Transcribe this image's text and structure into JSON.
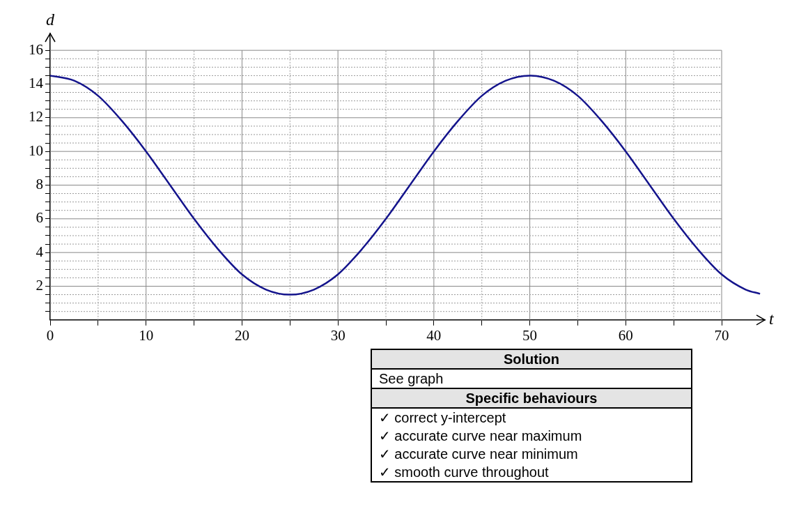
{
  "chart_data": {
    "type": "line",
    "xlabel": "t",
    "ylabel": "d",
    "x": [
      0,
      2.5,
      5,
      7.5,
      10,
      12.5,
      15,
      17.5,
      20,
      22.5,
      25,
      27.5,
      30,
      32.5,
      35,
      37.5,
      40,
      42.5,
      45,
      47.5,
      50,
      52.5,
      55,
      57.5,
      60,
      62.5,
      65,
      67.5,
      70,
      72.5,
      74
    ],
    "series": [
      {
        "color": "#14148c",
        "values": [
          14.5,
          14.2,
          13.3,
          11.8,
          10.0,
          8.0,
          6.0,
          4.2,
          2.7,
          1.8,
          1.5,
          1.8,
          2.7,
          4.2,
          6.0,
          8.0,
          10.0,
          11.8,
          13.3,
          14.2,
          14.5,
          14.2,
          13.3,
          11.8,
          10.0,
          8.0,
          6.0,
          4.2,
          2.7,
          1.8,
          1.55
        ]
      }
    ],
    "xlim": [
      0,
      74.5
    ],
    "ylim": [
      0,
      17
    ],
    "xticks": [
      0,
      {
        "value": 5,
        "label": null
      },
      10,
      {
        "value": 15,
        "label": null
      },
      20,
      {
        "value": 25,
        "label": null
      },
      30,
      {
        "value": 35,
        "label": null
      },
      40,
      {
        "value": 45,
        "label": null
      },
      50,
      {
        "value": 55,
        "label": null
      },
      60,
      {
        "value": 65,
        "label": null
      },
      70
    ],
    "yticks": [
      {
        "value": 0.5,
        "label": null
      },
      {
        "value": 1,
        "label": null
      },
      {
        "value": 1.5,
        "label": null
      },
      2,
      {
        "value": 2.5,
        "label": null
      },
      {
        "value": 3,
        "label": null
      },
      {
        "value": 3.5,
        "label": null
      },
      4,
      {
        "value": 4.5,
        "label": null
      },
      {
        "value": 5,
        "label": null
      },
      {
        "value": 5.5,
        "label": null
      },
      6,
      {
        "value": 6.5,
        "label": null
      },
      {
        "value": 7,
        "label": null
      },
      {
        "value": 7.5,
        "label": null
      },
      8,
      {
        "value": 8.5,
        "label": null
      },
      {
        "value": 9,
        "label": null
      },
      {
        "value": 9.5,
        "label": null
      },
      10,
      {
        "value": 10.5,
        "label": null
      },
      {
        "value": 11,
        "label": null
      },
      {
        "value": 11.5,
        "label": null
      },
      12,
      {
        "value": 12.5,
        "label": null
      },
      {
        "value": 13,
        "label": null
      },
      {
        "value": 13.5,
        "label": null
      },
      14,
      {
        "value": 14.5,
        "label": null
      },
      {
        "value": 15,
        "label": null
      },
      {
        "value": 15.5,
        "label": null
      },
      16
    ],
    "grid": true,
    "legend": false,
    "marker": "none",
    "line_style": "solid",
    "annotations": [
      "Solution",
      "See graph",
      "Specific behaviours",
      "✓ correct y-intercept",
      "✓ accurate curve near maximum",
      "✓ accurate curve near minimum",
      "✓ smooth curve throughout"
    ]
  }
}
